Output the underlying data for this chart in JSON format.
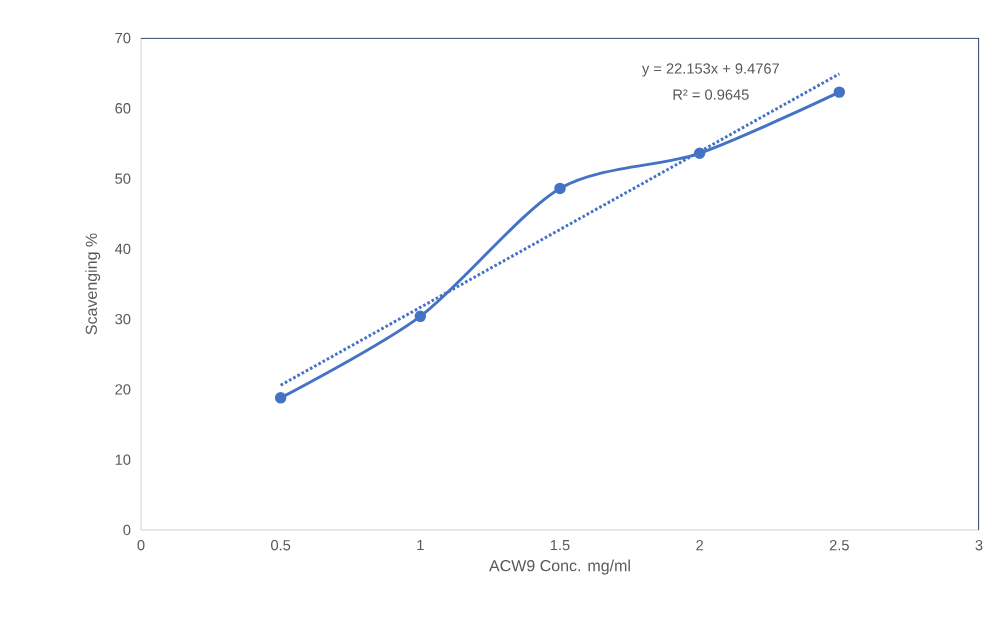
{
  "chart_data": {
    "type": "line",
    "xlabel": "ACW9 Conc. mg/ml",
    "ylabel": "Scavenging %",
    "series": [
      {
        "color": "#4472c4",
        "marker": "circle",
        "line_style": "solid",
        "x": [
          0.5,
          1,
          1.5,
          2,
          2.5
        ],
        "values": [
          18.8,
          30.4,
          48.6,
          53.6,
          62.3
        ]
      },
      {
        "color": "#4472c4",
        "marker": "none",
        "line_style": "dotted",
        "x": [
          0.5,
          2.5
        ],
        "values": [
          20.6,
          64.9
        ]
      }
    ],
    "annotations": [
      "y = 22.153x + 9.4767",
      "R² = 0.9645"
    ],
    "xlim": [
      0,
      3
    ],
    "xticks": [
      0,
      0.5,
      1,
      1.5,
      2,
      2.5,
      3
    ],
    "ylim": [
      0,
      70
    ],
    "yticks": [
      0,
      10,
      20,
      30,
      40,
      50,
      60,
      70
    ],
    "grid": false
  }
}
